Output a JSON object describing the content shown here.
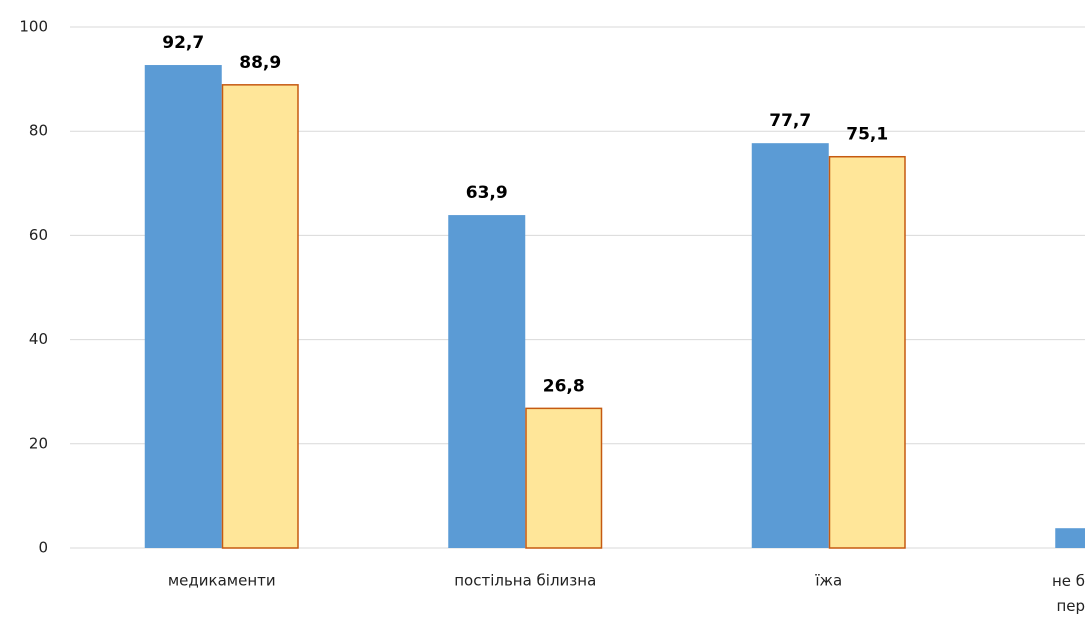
{
  "chart_data": {
    "type": "bar",
    "categories": [
      "медикаменти",
      "постільна білизна",
      "їжа",
      "не б\nпер"
    ],
    "series": [
      {
        "color": "#5b9bd5",
        "values": [
          92.7,
          63.9,
          77.7,
          3.8
        ],
        "value_labels": [
          "92,7",
          "63,9",
          "77,7",
          null
        ]
      },
      {
        "color": "#ffe699",
        "edge_color": "#c55a11",
        "values": [
          88.9,
          26.8,
          75.1,
          null
        ],
        "value_labels": [
          "88,9",
          "26,8",
          "75,1",
          null
        ]
      }
    ],
    "ylim": [
      0,
      100
    ],
    "yticks": [
      0,
      20,
      40,
      60,
      80,
      100
    ],
    "grid": true
  }
}
